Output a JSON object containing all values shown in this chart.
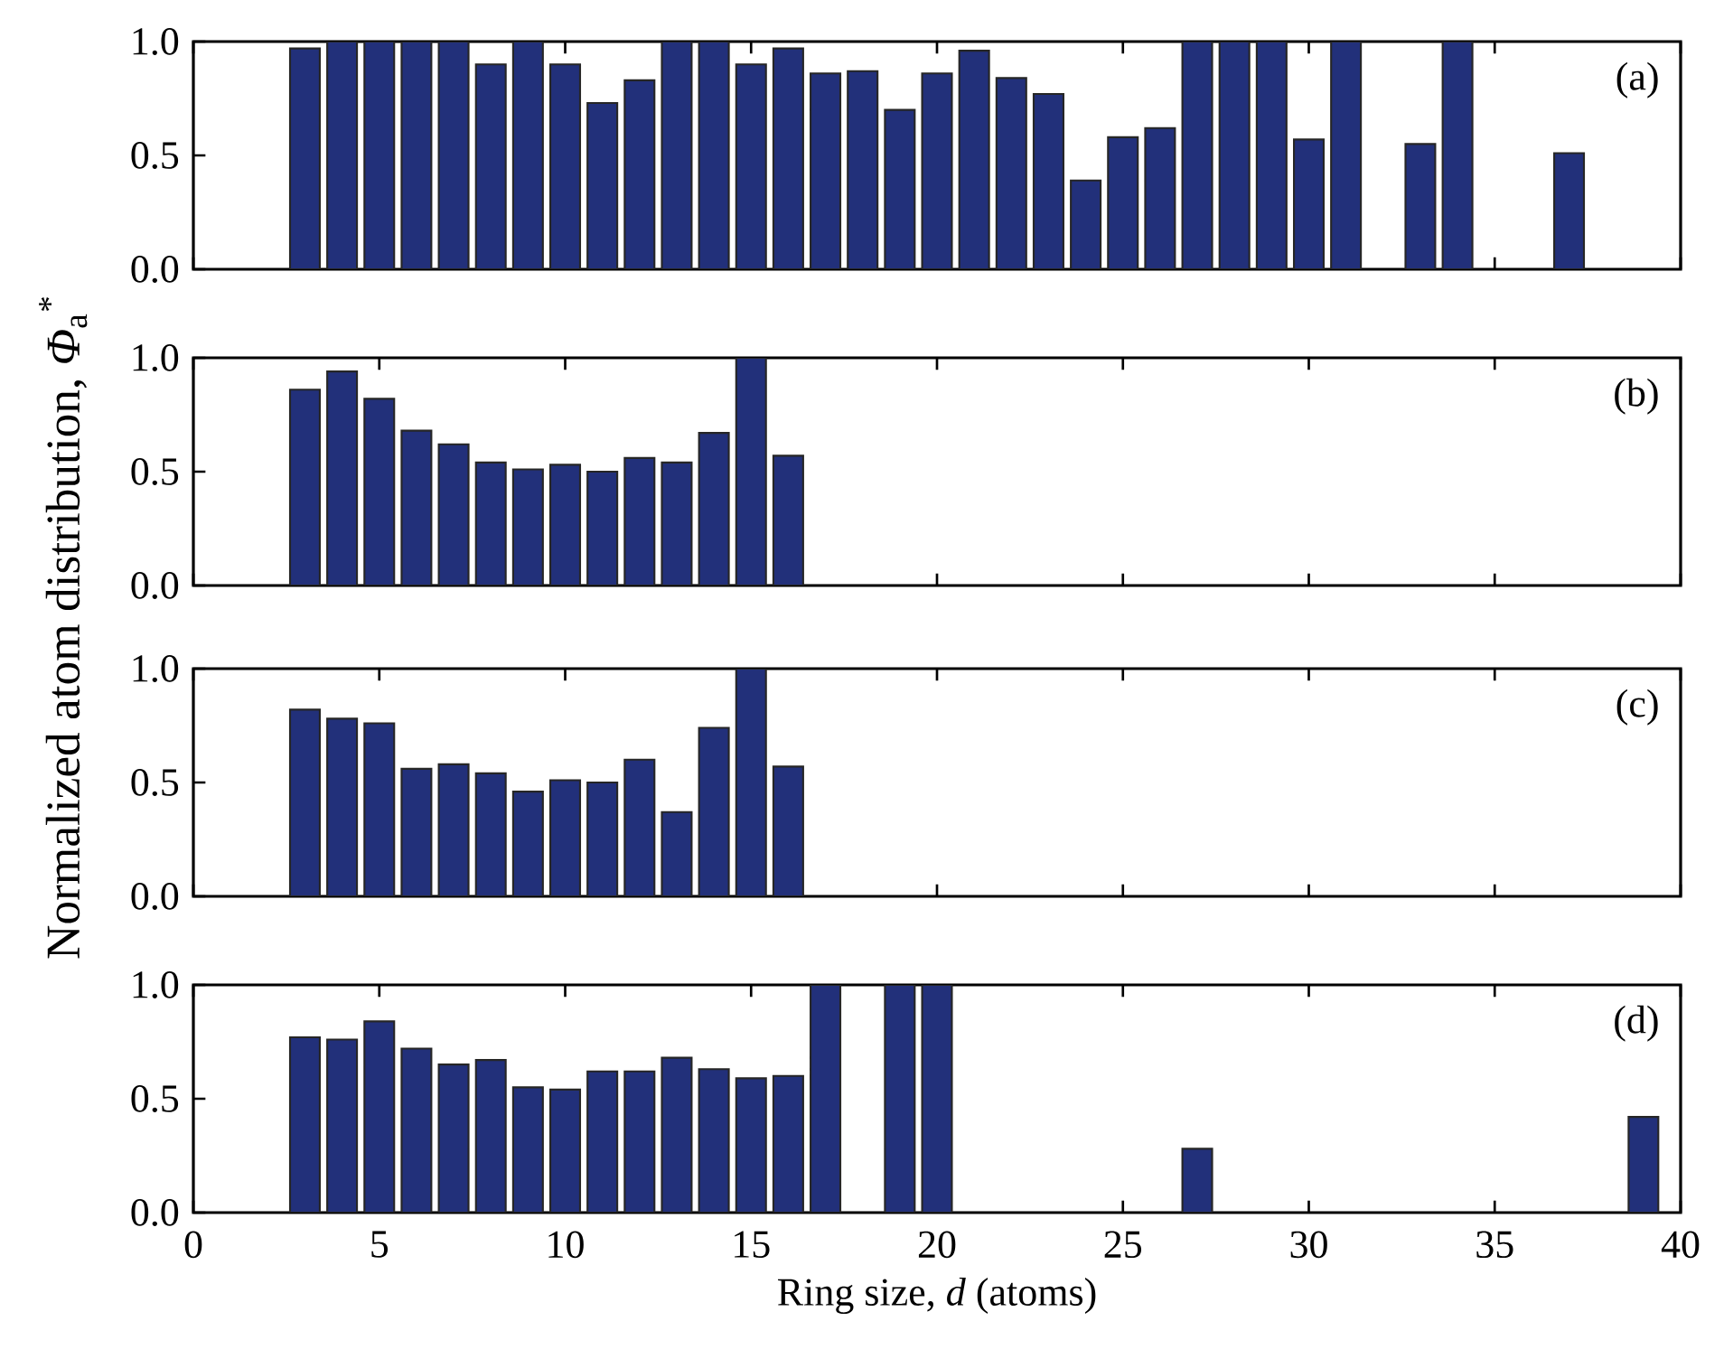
{
  "chart_data": [
    {
      "type": "bar",
      "ylabel": "Normalized atom distribution, *Φ*$_{a}$$^{*}$",
      "annotations": [
        "(a)"
      ],
      "tick_labels": "y",
      "xlim": [
        0,
        40
      ],
      "ylim": [
        0,
        1
      ],
      "xticks": [
        0,
        5,
        10,
        15,
        20,
        25,
        30,
        35,
        40
      ],
      "yticks": [
        {
          "value": 0,
          "label": "0.0"
        },
        {
          "value": 0.5,
          "label": "0.5"
        },
        {
          "value": 1,
          "label": "1.0"
        }
      ],
      "color": "#22307a",
      "x": [
        3,
        4,
        5,
        6,
        7,
        8,
        9,
        10,
        11,
        12,
        13,
        14,
        15,
        16,
        17,
        18,
        19,
        20,
        21,
        22,
        23,
        24,
        25,
        26,
        27,
        28,
        29,
        30,
        31,
        33,
        34,
        37
      ],
      "values": [
        0.97,
        1.0,
        1.0,
        1.0,
        1.0,
        0.9,
        1.0,
        0.9,
        0.73,
        0.83,
        1.0,
        1.0,
        0.9,
        0.97,
        0.86,
        0.87,
        0.7,
        0.86,
        0.96,
        0.84,
        0.77,
        0.39,
        0.58,
        0.62,
        1.0,
        1.0,
        1.0,
        0.57,
        1.0,
        0.55,
        1.0,
        0.51
      ]
    },
    {
      "type": "bar",
      "annotations": [
        "(b)"
      ],
      "tick_labels": "y",
      "xlim": [
        0,
        40
      ],
      "ylim": [
        0,
        1
      ],
      "xticks": [
        0,
        5,
        10,
        15,
        20,
        25,
        30,
        35,
        40
      ],
      "yticks": [
        {
          "value": 0,
          "label": "0.0"
        },
        {
          "value": 0.5,
          "label": "0.5"
        },
        {
          "value": 1,
          "label": "1.0"
        }
      ],
      "color": "#22307a",
      "x": [
        3,
        4,
        5,
        6,
        7,
        8,
        9,
        10,
        11,
        12,
        13,
        14,
        15,
        16
      ],
      "values": [
        0.86,
        0.94,
        0.82,
        0.68,
        0.62,
        0.54,
        0.51,
        0.53,
        0.5,
        0.56,
        0.54,
        0.67,
        1.0,
        0.57
      ]
    },
    {
      "type": "bar",
      "annotations": [
        "(c)"
      ],
      "tick_labels": "y",
      "xlim": [
        0,
        40
      ],
      "ylim": [
        0,
        1
      ],
      "xticks": [
        0,
        5,
        10,
        15,
        20,
        25,
        30,
        35,
        40
      ],
      "yticks": [
        {
          "value": 0,
          "label": "0.0"
        },
        {
          "value": 0.5,
          "label": "0.5"
        },
        {
          "value": 1,
          "label": "1.0"
        }
      ],
      "color": "#22307a",
      "x": [
        3,
        4,
        5,
        6,
        7,
        8,
        9,
        10,
        11,
        12,
        13,
        14,
        15,
        16
      ],
      "values": [
        0.82,
        0.78,
        0.76,
        0.56,
        0.58,
        0.54,
        0.46,
        0.51,
        0.5,
        0.6,
        0.37,
        0.74,
        1.0,
        0.57
      ]
    },
    {
      "type": "bar",
      "xlabel": "Ring size, *d* (atoms)",
      "annotations": [
        "(d)"
      ],
      "xlim": [
        0,
        40
      ],
      "ylim": [
        0,
        1
      ],
      "xticks": [
        0,
        5,
        10,
        15,
        20,
        25,
        30,
        35,
        40
      ],
      "yticks": [
        {
          "value": 0,
          "label": "0.0"
        },
        {
          "value": 0.5,
          "label": "0.5"
        },
        {
          "value": 1,
          "label": "1.0"
        }
      ],
      "color": "#22307a",
      "x": [
        3,
        4,
        5,
        6,
        7,
        8,
        9,
        10,
        11,
        12,
        13,
        14,
        15,
        16,
        17,
        19,
        20,
        27,
        39
      ],
      "values": [
        0.77,
        0.76,
        0.84,
        0.72,
        0.65,
        0.67,
        0.55,
        0.54,
        0.62,
        0.62,
        0.68,
        0.63,
        0.59,
        0.6,
        1.0,
        1.0,
        1.0,
        0.28,
        0.42
      ]
    }
  ]
}
